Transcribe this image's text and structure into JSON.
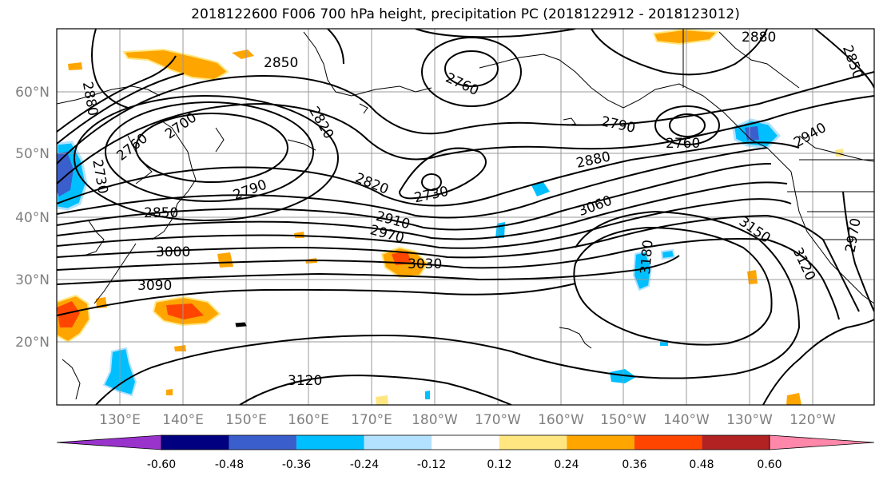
{
  "title": "2018122600 F006 700 hPa height, precipitation PC (2018122912 - 2018123012)",
  "lat_labels": [
    "60°N",
    "50°N",
    "40°N",
    "30°N",
    "20°N"
  ],
  "lon_labels": [
    "130°E",
    "140°E",
    "150°E",
    "160°E",
    "170°E",
    "180°W",
    "170°W",
    "160°W",
    "150°W",
    "140°W",
    "130°W",
    "120°W"
  ],
  "contour_labels": [
    "2880",
    "2850",
    "2760",
    "2700",
    "2820",
    "2730",
    "2790",
    "2850",
    "2880",
    "2760",
    "2790",
    "2760",
    "2820",
    "2730",
    "2910",
    "2970",
    "3000",
    "3030",
    "3090",
    "3060",
    "3150",
    "3180",
    "3120",
    "2940",
    "2970",
    "2880",
    "2850",
    "3120"
  ],
  "colorbar": {
    "ticks": [
      "-0.60",
      "-0.48",
      "-0.36",
      "-0.24",
      "-0.12",
      "0.12",
      "0.24",
      "0.36",
      "0.48",
      "0.60"
    ],
    "colors": [
      "#9933cc",
      "#000080",
      "#3a5fcd",
      "#00bfff",
      "#b2e2ff",
      "#ffffff",
      "#ffe680",
      "#ffa500",
      "#ff4500",
      "#b22222",
      "#ff88aa"
    ]
  },
  "colors": {
    "positive": "#ffa500",
    "positive_mid": "#ffe680",
    "positive_strong": "#ff4500",
    "negative": "#00bfff",
    "negative_mid": "#b2e2ff",
    "negative_strong": "#3a5fcd"
  }
}
